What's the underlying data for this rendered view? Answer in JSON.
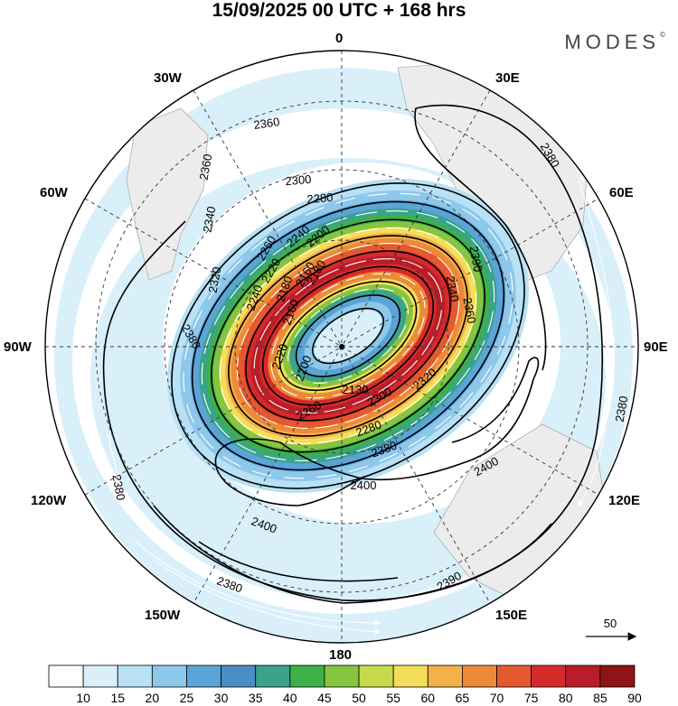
{
  "header": {
    "title": "15/09/2025  00 UTC  + 168 hrs",
    "brand": "MODES",
    "brand_mark": "©"
  },
  "longitudes": {
    "top": "0",
    "n30e": "30E",
    "n60e": "60E",
    "e90": "90E",
    "s120e": "120E",
    "s150e": "150E",
    "bottom": "180",
    "s150w": "150W",
    "s120w": "120W",
    "w90": "90W",
    "n60w": "60W",
    "n30w": "30W"
  },
  "contour_labels": [
    "2360",
    "2360",
    "2340",
    "2320",
    "2300",
    "2280",
    "2260",
    "2240",
    "2220",
    "2200",
    "2180",
    "2160",
    "2130",
    "2160",
    "2180",
    "2200",
    "2220",
    "2240",
    "2260",
    "2280",
    "2300",
    "2320",
    "2340",
    "2360",
    "2380",
    "2380",
    "2380",
    "2380",
    "2390",
    "2400",
    "2400",
    "2380",
    "2390",
    "2400",
    "2380"
  ],
  "vector": {
    "label": "50"
  },
  "colorbar": {
    "labels": [
      "10",
      "15",
      "20",
      "25",
      "30",
      "35",
      "40",
      "45",
      "50",
      "55",
      "60",
      "65",
      "70",
      "75",
      "80",
      "85",
      "90"
    ],
    "colors": [
      "#ffffff",
      "#d9f0fb",
      "#b8e1f5",
      "#8dc8ea",
      "#5aa4d8",
      "#4a8cc4",
      "#3aa38a",
      "#3db04a",
      "#86c540",
      "#c8da4a",
      "#f4de5a",
      "#f4b14a",
      "#ec8a3a",
      "#e4592f",
      "#d62a2a",
      "#b81e2a",
      "#8e1418"
    ]
  },
  "chart_data": {
    "type": "heatmap",
    "title": "15/09/2025  00 UTC  + 168 hrs",
    "projection": "south polar stereographic",
    "field": "wind speed (shaded), geopotential height (contours), wind vectors",
    "contour_values": [
      2130,
      2160,
      2180,
      2200,
      2220,
      2240,
      2260,
      2280,
      2300,
      2320,
      2340,
      2360,
      2380,
      2390,
      2400
    ],
    "colorbar_levels": [
      10,
      15,
      20,
      25,
      30,
      35,
      40,
      45,
      50,
      55,
      60,
      65,
      70,
      75,
      80,
      85,
      90
    ],
    "reference_vector": 50
  }
}
